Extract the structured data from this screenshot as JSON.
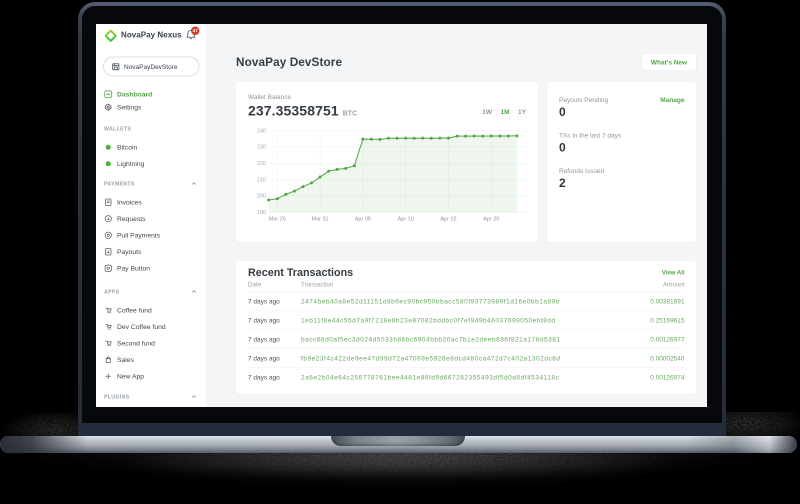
{
  "accent": "#55a44a",
  "brand": {
    "name": "NovaPay Nexus",
    "notification_count": "47"
  },
  "store_selector": {
    "label": "NovaPayDevStore"
  },
  "sidebar": {
    "primary": [
      {
        "label": "Dashboard",
        "icon": "dashboard-icon",
        "active": true
      },
      {
        "label": "Settings",
        "icon": "gear-icon",
        "active": false
      }
    ],
    "sections": [
      {
        "label": "WALLETS",
        "collapsible": false,
        "items": [
          {
            "label": "Bitcoin",
            "icon": "green-dot-icon"
          },
          {
            "label": "Lightning",
            "icon": "green-dot-icon"
          }
        ]
      },
      {
        "label": "PAYMENTS",
        "collapsible": true,
        "items": [
          {
            "label": "Invoices",
            "icon": "invoice-icon"
          },
          {
            "label": "Requests",
            "icon": "request-icon"
          },
          {
            "label": "Pull Payments",
            "icon": "pull-payment-icon"
          },
          {
            "label": "Payouts",
            "icon": "payout-icon"
          },
          {
            "label": "Pay Button",
            "icon": "pay-button-icon"
          }
        ]
      },
      {
        "label": "APPS",
        "collapsible": true,
        "items": [
          {
            "label": "Coffee fund",
            "icon": "app-icon"
          },
          {
            "label": "Dev Coffee fund",
            "icon": "app-icon"
          },
          {
            "label": "Second fund",
            "icon": "app-icon"
          },
          {
            "label": "Sales",
            "icon": "bag-icon"
          },
          {
            "label": "New App",
            "icon": "plus-icon"
          }
        ]
      },
      {
        "label": "PLUGINS",
        "collapsible": true,
        "items": []
      }
    ]
  },
  "header": {
    "title": "NovaPay DevStore",
    "whats_new_label": "What's New"
  },
  "wallet_card": {
    "label": "Wallet Balance",
    "value": "237.35358751",
    "unit": "BTC",
    "ranges": [
      "1W",
      "1M",
      "1Y"
    ],
    "active_range": "1M"
  },
  "chart_data": {
    "type": "line",
    "title": "Wallet Balance",
    "ylabel": "BTC",
    "ylim": [
      190,
      240
    ],
    "yticks": [
      240,
      230,
      220,
      210,
      200,
      190
    ],
    "x_labels": [
      "Mar 26",
      "Mar 31",
      "Apr 05",
      "Apr 10",
      "Apr 15",
      "Apr 20"
    ],
    "x_label_indices": [
      1,
      6,
      11,
      16,
      21,
      26
    ],
    "values": [
      197.4,
      198.2,
      200.9,
      202.9,
      205.6,
      207.9,
      211.5,
      215.1,
      216.2,
      216.8,
      218.4,
      234.8,
      234.7,
      234.6,
      235.3,
      235.3,
      235.4,
      235.3,
      235.4,
      235.3,
      235.4,
      235.4,
      236.6,
      236.6,
      236.7,
      236.6,
      236.7,
      236.7,
      236.7,
      236.8
    ],
    "grid": true,
    "legend": false,
    "line_color": "#55a44a",
    "fill_color": "rgba(85,164,74,0.10)"
  },
  "stats": [
    {
      "label": "Payouts Pending",
      "value": "0",
      "action": "Manage"
    },
    {
      "label": "TXs in the last 7 days",
      "value": "0",
      "action": ""
    },
    {
      "label": "Refunds Issued",
      "value": "2",
      "action": ""
    }
  ],
  "transactions": {
    "title": "Recent Transactions",
    "view_all_label": "View All",
    "columns": [
      "Date",
      "Transaction",
      "Amount"
    ],
    "rows": [
      {
        "date": "7 days ago",
        "tx": "2474beb40a8e52d11151d8b9ec90bc950bbacc580f93773989f1d16e0bb1a99b",
        "amount": "0.00381691"
      },
      {
        "date": "7 days ago",
        "tx": "1eb11f8e44c55d7a9f7218e8b23e87082bddbc0f7ef949b46037699050efd8dd",
        "amount": "0.25169615"
      },
      {
        "date": "7 days ago",
        "tx": "bacc68d0af5ec3d024d5033b86bc6904bbb20ac7b1e2deeb686f821a178d5381",
        "amount": "0.00126977"
      },
      {
        "date": "7 days ago",
        "tx": "fb9e23f4c422de9ee47d99d72a47069e5928e8dcd480ca472d7c402a1302dc8d",
        "amount": "0.00002540"
      },
      {
        "date": "7 days ago",
        "tx": "2a6e2b04e64c256778761bee4481e86fd9d667282355493df5d0d8df4534118c",
        "amount": "0.00126974"
      }
    ]
  }
}
